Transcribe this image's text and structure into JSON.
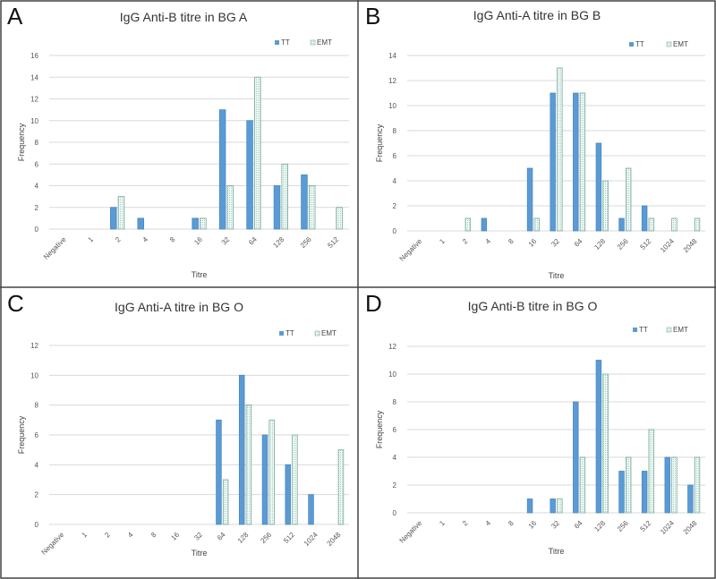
{
  "chart_data": [
    {
      "type": "bar",
      "panel": "A",
      "title": "IgG Anti-B titre in BG A",
      "xlabel": "Titre",
      "ylabel": "Frequency",
      "ylim": [
        0,
        16
      ],
      "ystep": 2,
      "grid": true,
      "legend_position": "top-right",
      "categories": [
        "Negative",
        "1",
        "2",
        "4",
        "8",
        "16",
        "32",
        "64",
        "128",
        "256",
        "512"
      ],
      "series": [
        {
          "name": "TT",
          "values": [
            0,
            0,
            2,
            1,
            0,
            1,
            11,
            10,
            4,
            5,
            0
          ]
        },
        {
          "name": "EMT",
          "values": [
            0,
            0,
            3,
            0,
            0,
            1,
            4,
            14,
            6,
            4,
            2
          ]
        }
      ]
    },
    {
      "type": "bar",
      "panel": "B",
      "title": "IgG Anti-A titre in BG B",
      "xlabel": "Titre",
      "ylabel": "Frequency",
      "ylim": [
        0,
        14
      ],
      "ystep": 2,
      "grid": true,
      "legend_position": "top-right",
      "categories": [
        "Negative",
        "1",
        "2",
        "4",
        "8",
        "16",
        "32",
        "64",
        "128",
        "256",
        "512",
        "1024",
        "2048"
      ],
      "series": [
        {
          "name": "TT",
          "values": [
            0,
            0,
            0,
            1,
            0,
            5,
            11,
            11,
            7,
            1,
            2,
            0,
            0
          ]
        },
        {
          "name": "EMT",
          "values": [
            0,
            0,
            1,
            0,
            0,
            1,
            13,
            11,
            4,
            5,
            1,
            1,
            1
          ]
        }
      ]
    },
    {
      "type": "bar",
      "panel": "C",
      "title": "IgG Anti-A titre in BG O",
      "xlabel": "Titre",
      "ylabel": "Frequency",
      "ylim": [
        0,
        12
      ],
      "ystep": 2,
      "grid": true,
      "legend_position": "top-right",
      "categories": [
        "Negative",
        "1",
        "2",
        "4",
        "8",
        "16",
        "32",
        "64",
        "128",
        "256",
        "512",
        "1024",
        "2048"
      ],
      "series": [
        {
          "name": "TT",
          "values": [
            0,
            0,
            0,
            0,
            0,
            0,
            0,
            7,
            10,
            6,
            4,
            2,
            0
          ]
        },
        {
          "name": "EMT",
          "values": [
            0,
            0,
            0,
            0,
            0,
            0,
            0,
            3,
            8,
            7,
            6,
            0,
            5
          ]
        }
      ]
    },
    {
      "type": "bar",
      "panel": "D",
      "title": "IgG Anti-B titre in BG O",
      "xlabel": "Titre",
      "ylabel": "Frequency",
      "ylim": [
        0,
        12
      ],
      "ystep": 2,
      "grid": true,
      "legend_position": "top-right",
      "categories": [
        "Negative",
        "1",
        "2",
        "4",
        "8",
        "16",
        "32",
        "64",
        "128",
        "256",
        "512",
        "1024",
        "2048"
      ],
      "series": [
        {
          "name": "TT",
          "values": [
            0,
            0,
            0,
            0,
            0,
            1,
            1,
            8,
            11,
            3,
            3,
            4,
            2
          ]
        },
        {
          "name": "EMT",
          "values": [
            0,
            0,
            0,
            0,
            0,
            0,
            1,
            4,
            10,
            4,
            6,
            4,
            4
          ]
        }
      ]
    }
  ],
  "colors": {
    "TT": "#5b9bd5",
    "EMT_fill": "#eaf6f2",
    "EMT_stroke": "#7aa89c"
  }
}
